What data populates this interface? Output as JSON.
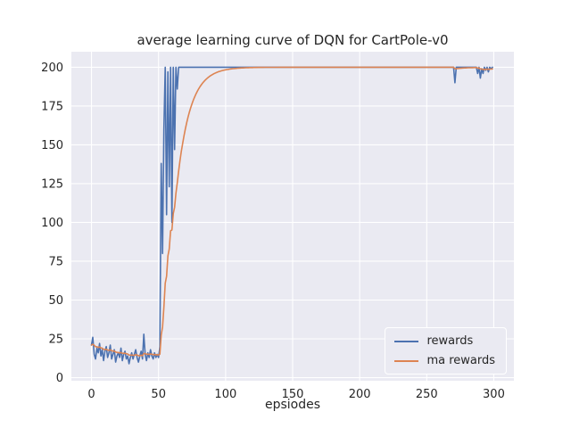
{
  "chart_data": {
    "type": "line",
    "title": "average learning curve of DQN for CartPole-v0",
    "xlabel": "epsiodes",
    "ylabel": "",
    "xlim": [
      -15,
      315
    ],
    "ylim": [
      -2,
      210
    ],
    "xticks": [
      0,
      50,
      100,
      150,
      200,
      250,
      300
    ],
    "yticks": [
      0,
      25,
      50,
      75,
      100,
      125,
      150,
      175,
      200
    ],
    "grid": true,
    "legend_position": "lower right",
    "background": "#eaeaf2",
    "grid_color": "#ffffff",
    "text_color": "#262626",
    "x_start": 0,
    "x_step": 1,
    "series": [
      {
        "name": "rewards",
        "color": "#4c72b0",
        "values": [
          21,
          26,
          15,
          12,
          19,
          16,
          22,
          14,
          18,
          11,
          17,
          20,
          13,
          16,
          21,
          12,
          15,
          18,
          10,
          14,
          16,
          13,
          19,
          11,
          15,
          17,
          12,
          14,
          9,
          13,
          16,
          12,
          15,
          18,
          13,
          10,
          14,
          17,
          12,
          28,
          15,
          11,
          16,
          13,
          18,
          14,
          12,
          16,
          13,
          15,
          13,
          20,
          138,
          80,
          160,
          200,
          105,
          197,
          123,
          200,
          100,
          200,
          147,
          200,
          186,
          200,
          200,
          200,
          200,
          200,
          200,
          200,
          200,
          200,
          200,
          200,
          200,
          200,
          200,
          200,
          200,
          200,
          200,
          200,
          200,
          200,
          200,
          200,
          200,
          200,
          200,
          200,
          200,
          200,
          200,
          200,
          200,
          200,
          200,
          200,
          200,
          200,
          200,
          200,
          200,
          200,
          200,
          200,
          200,
          200,
          200,
          200,
          200,
          200,
          200,
          200,
          200,
          200,
          200,
          200,
          200,
          200,
          200,
          200,
          200,
          200,
          200,
          200,
          200,
          200,
          200,
          200,
          200,
          200,
          200,
          200,
          200,
          200,
          200,
          200,
          200,
          200,
          200,
          200,
          200,
          200,
          200,
          200,
          200,
          200,
          200,
          200,
          200,
          200,
          200,
          200,
          200,
          200,
          200,
          200,
          200,
          200,
          200,
          200,
          200,
          200,
          200,
          200,
          200,
          200,
          200,
          200,
          200,
          200,
          200,
          200,
          200,
          200,
          200,
          200,
          200,
          200,
          200,
          200,
          200,
          200,
          200,
          200,
          200,
          200,
          200,
          200,
          200,
          200,
          200,
          200,
          200,
          200,
          200,
          200,
          200,
          200,
          200,
          200,
          200,
          200,
          200,
          200,
          200,
          200,
          200,
          200,
          200,
          200,
          200,
          200,
          200,
          200,
          200,
          200,
          200,
          200,
          200,
          200,
          200,
          200,
          200,
          200,
          200,
          200,
          200,
          200,
          200,
          200,
          200,
          200,
          200,
          200,
          200,
          200,
          200,
          200,
          200,
          200,
          200,
          200,
          200,
          200,
          200,
          200,
          200,
          200,
          200,
          200,
          200,
          200,
          200,
          200,
          200,
          200,
          200,
          200,
          200,
          200,
          200,
          200,
          200,
          200,
          200,
          200,
          200,
          190,
          200,
          200,
          200,
          200,
          200,
          200,
          200,
          200,
          200,
          200,
          200,
          200,
          200,
          200,
          200,
          200,
          196,
          200,
          193,
          199,
          196,
          200,
          198,
          200,
          197,
          200,
          199,
          200
        ]
      },
      {
        "name": "ma rewards",
        "color": "#dd8452",
        "values": [
          21.0,
          21.5,
          20.85,
          19.97,
          19.87,
          19.48,
          19.73,
          19.16,
          19.04,
          18.24,
          18.12,
          18.31,
          17.78,
          17.6,
          17.94,
          17.35,
          17.11,
          17.2,
          16.48,
          16.23,
          16.21,
          15.89,
          16.2,
          15.68,
          15.61,
          15.75,
          15.38,
          15.24,
          14.62,
          14.45,
          14.61,
          14.35,
          14.41,
          14.77,
          14.59,
          14.13,
          14.12,
          14.41,
          14.17,
          15.55,
          15.5,
          15.05,
          15.14,
          14.93,
          15.24,
          15.11,
          14.8,
          14.92,
          14.73,
          14.76,
          14.58,
          15.12,
          27.41,
          32.67,
          45.4,
          60.86,
          65.28,
          78.45,
          82.9,
          94.61,
          95.15,
          105.64,
          109.77,
          118.8,
          125.52,
          132.96,
          139.67,
          145.7,
          151.13,
          156.02,
          160.42,
          164.37,
          167.94,
          171.14,
          174.03,
          176.63,
          178.96,
          181.07,
          182.96,
          184.66,
          186.2,
          187.58,
          188.82,
          189.94,
          190.94,
          191.85,
          192.66,
          193.4,
          194.06,
          194.65,
          195.19,
          195.67,
          196.1,
          196.49,
          196.84,
          197.16,
          197.44,
          197.7,
          197.93,
          198.14,
          198.32,
          198.49,
          198.64,
          198.78,
          198.9,
          199.01,
          199.11,
          199.2,
          199.28,
          199.35,
          199.42,
          199.48,
          199.53,
          199.57,
          199.62,
          199.66,
          199.69,
          199.72,
          199.75,
          199.77,
          199.79,
          199.81,
          199.83,
          199.85,
          199.86,
          199.88,
          199.89,
          199.9,
          199.91,
          199.92,
          199.93,
          199.94,
          199.94,
          199.95,
          199.95,
          199.96,
          199.96,
          199.97,
          199.97,
          199.97,
          200,
          200,
          200,
          200,
          200,
          200,
          200,
          200,
          200,
          200,
          200,
          200,
          200,
          200,
          200,
          200,
          200,
          200,
          200,
          200,
          200,
          200,
          200,
          200,
          200,
          200,
          200,
          200,
          200,
          200,
          200,
          200,
          200,
          200,
          200,
          200,
          200,
          200,
          200,
          200,
          200,
          200,
          200,
          200,
          200,
          200,
          200,
          200,
          200,
          200,
          200,
          200,
          200,
          200,
          200,
          200,
          200,
          200,
          200,
          200,
          200,
          200,
          200,
          200,
          200,
          200,
          200,
          200,
          200,
          200,
          200,
          200,
          200,
          200,
          200,
          200,
          200,
          200,
          200,
          200,
          200,
          200,
          200,
          200,
          200,
          200,
          200,
          200,
          200,
          200,
          200,
          200,
          200,
          200,
          200,
          200,
          200,
          200,
          200,
          200,
          200,
          200,
          200,
          200,
          200,
          200,
          200,
          200,
          200,
          200,
          200,
          200,
          200,
          200,
          200,
          200,
          200,
          200,
          200,
          200,
          200,
          200,
          200,
          200,
          200,
          200,
          200,
          200,
          200,
          200,
          200,
          199.0,
          199.1,
          199.19,
          199.27,
          199.34,
          199.41,
          199.47,
          199.52,
          199.57,
          199.61,
          199.65,
          199.68,
          199.71,
          199.74,
          199.77,
          199.79,
          199.81,
          199.43,
          199.49,
          198.84,
          198.86,
          198.57,
          198.71,
          198.64,
          198.78,
          198.6,
          198.74,
          198.77,
          198.89
        ]
      }
    ]
  }
}
